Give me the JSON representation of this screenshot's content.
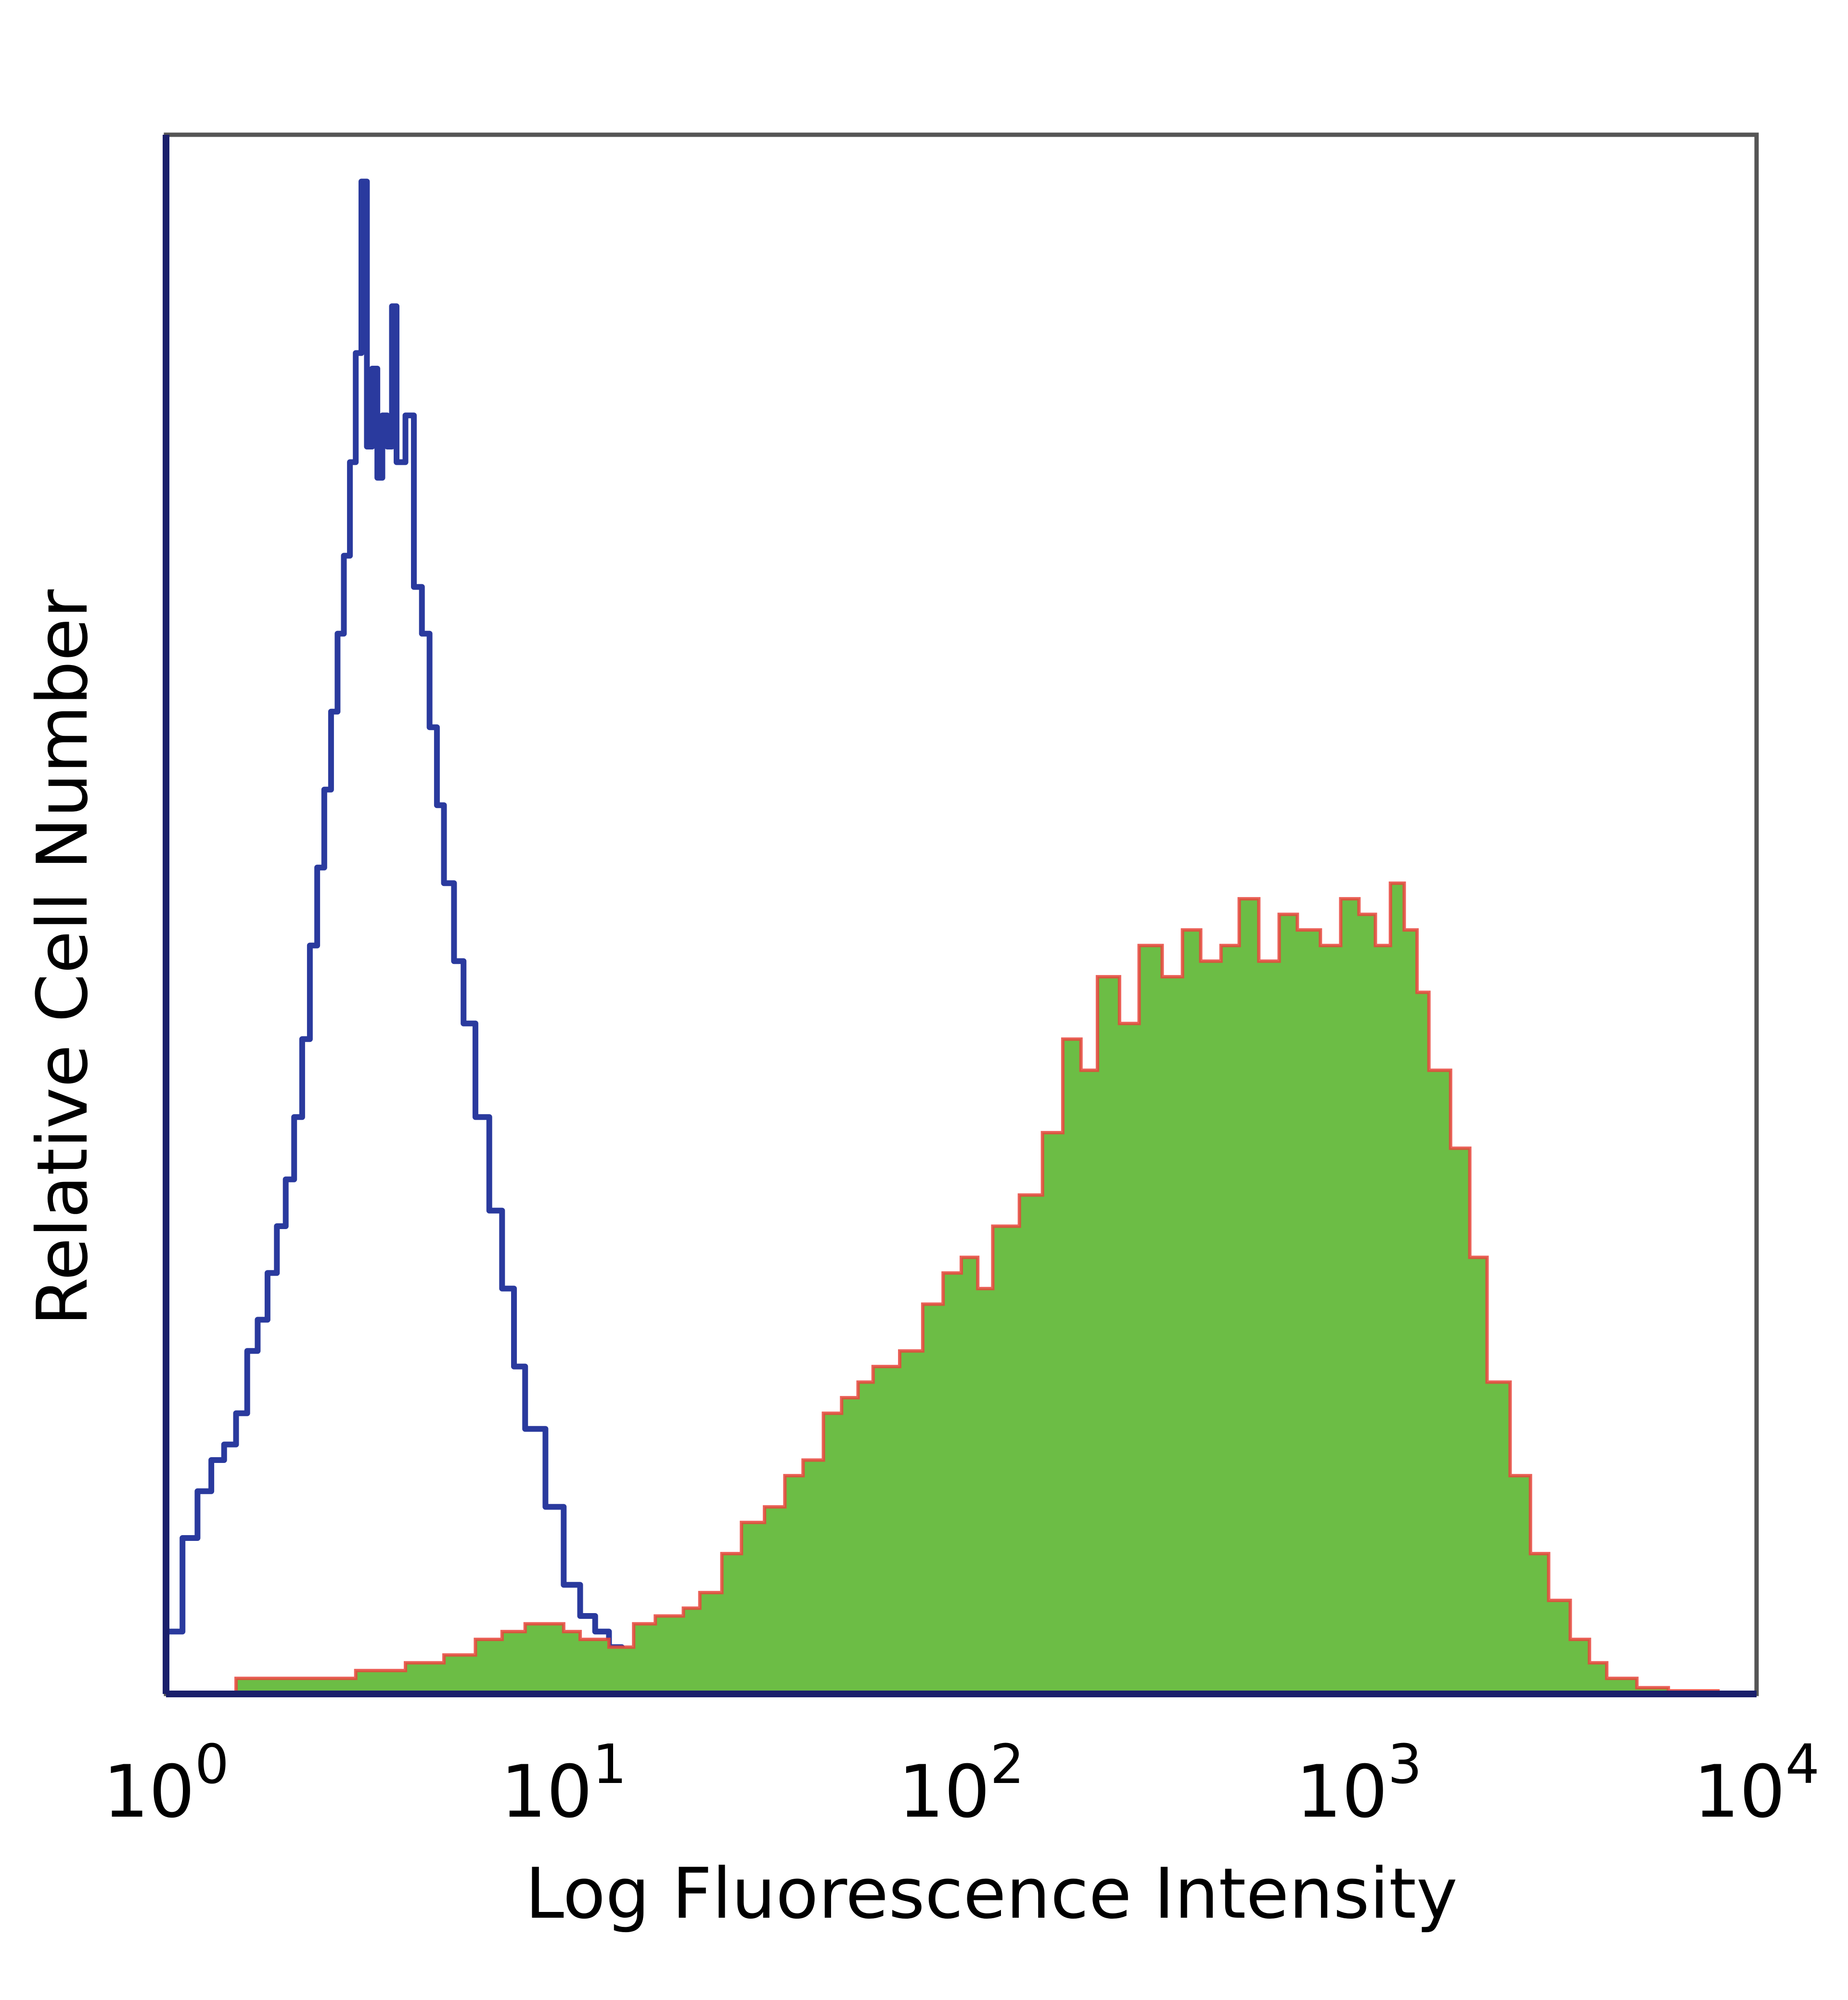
{
  "chart_data": {
    "type": "area",
    "xlabel": "Log Fluorescence Intensity",
    "ylabel": "Relative Cell Number",
    "x_scale": "log",
    "xlim": [
      1,
      10000
    ],
    "ylim": [
      0,
      1
    ],
    "grid": false,
    "x_ticks": [
      {
        "base": "10",
        "exp": "0"
      },
      {
        "base": "10",
        "exp": "1"
      },
      {
        "base": "10",
        "exp": "2"
      },
      {
        "base": "10",
        "exp": "3"
      },
      {
        "base": "10",
        "exp": "4"
      }
    ],
    "colors": {
      "isotype": "#2a3a9e",
      "stained_fill": "#6cbd45",
      "stained_line": "#e8453c",
      "axis": "#1a1f6b",
      "frame": "#555555"
    },
    "series": [
      {
        "style": "outline",
        "color": "#2a3a9e",
        "x": [
          1.0,
          1.1,
          1.2,
          1.3,
          1.4,
          1.5,
          1.6,
          1.7,
          1.8,
          1.9,
          2.0,
          2.1,
          2.2,
          2.3,
          2.4,
          2.5,
          2.6,
          2.7,
          2.8,
          2.9,
          3.0,
          3.1,
          3.2,
          3.3,
          3.4,
          3.5,
          3.6,
          3.7,
          3.8,
          4.0,
          4.2,
          4.4,
          4.6,
          4.8,
          5.0,
          5.3,
          5.6,
          6.0,
          6.5,
          7.0,
          7.5,
          8.0,
          9.0,
          10.0,
          11.0,
          12.0,
          13.0,
          14.0,
          15.0,
          16.0,
          17.0,
          18.0,
          20.0,
          22.0,
          24.0,
          26.0,
          30.0
        ],
        "y": [
          0.04,
          0.1,
          0.13,
          0.15,
          0.16,
          0.18,
          0.22,
          0.24,
          0.27,
          0.3,
          0.33,
          0.37,
          0.42,
          0.48,
          0.53,
          0.58,
          0.63,
          0.68,
          0.73,
          0.79,
          0.86,
          0.97,
          0.8,
          0.85,
          0.78,
          0.82,
          0.8,
          0.89,
          0.79,
          0.82,
          0.71,
          0.68,
          0.62,
          0.57,
          0.52,
          0.47,
          0.43,
          0.37,
          0.31,
          0.26,
          0.21,
          0.17,
          0.12,
          0.07,
          0.05,
          0.04,
          0.03,
          0.025,
          0.02,
          0.015,
          0.01,
          0.006,
          0.004,
          0.006,
          0.004,
          0.002,
          0.0
        ]
      },
      {
        "style": "filled",
        "color": "#6cbd45",
        "line_color": "#e8453c",
        "x": [
          1.0,
          1.3,
          1.5,
          2.0,
          3.0,
          4.0,
          5.0,
          6.0,
          7.0,
          8.0,
          9.0,
          10.0,
          11.0,
          12.0,
          13.0,
          15.0,
          17.0,
          20.0,
          22.0,
          25.0,
          28.0,
          32.0,
          36.0,
          40.0,
          45.0,
          50.0,
          55.0,
          60.0,
          70.0,
          80.0,
          90.0,
          100.0,
          110.0,
          120.0,
          140.0,
          160.0,
          180.0,
          200.0,
          220.0,
          250.0,
          280.0,
          320.0,
          360.0,
          400.0,
          450.0,
          500.0,
          560.0,
          630.0,
          700.0,
          800.0,
          900.0,
          1000.0,
          1100.0,
          1200.0,
          1300.0,
          1400.0,
          1500.0,
          1700.0,
          1900.0,
          2100.0,
          2400.0,
          2700.0,
          3000.0,
          3400.0,
          3800.0,
          4200.0,
          5000.0,
          6000.0,
          8000.0,
          10000.0
        ],
        "y": [
          0.0,
          0.0,
          0.01,
          0.01,
          0.015,
          0.02,
          0.025,
          0.035,
          0.04,
          0.045,
          0.045,
          0.04,
          0.035,
          0.035,
          0.03,
          0.045,
          0.05,
          0.055,
          0.065,
          0.09,
          0.11,
          0.12,
          0.14,
          0.15,
          0.18,
          0.19,
          0.2,
          0.21,
          0.22,
          0.25,
          0.27,
          0.28,
          0.26,
          0.3,
          0.32,
          0.36,
          0.42,
          0.4,
          0.46,
          0.43,
          0.48,
          0.46,
          0.49,
          0.47,
          0.48,
          0.51,
          0.47,
          0.5,
          0.49,
          0.48,
          0.51,
          0.5,
          0.48,
          0.52,
          0.49,
          0.45,
          0.4,
          0.35,
          0.28,
          0.2,
          0.14,
          0.09,
          0.06,
          0.035,
          0.02,
          0.01,
          0.004,
          0.002,
          0.0,
          0.0
        ]
      }
    ]
  }
}
